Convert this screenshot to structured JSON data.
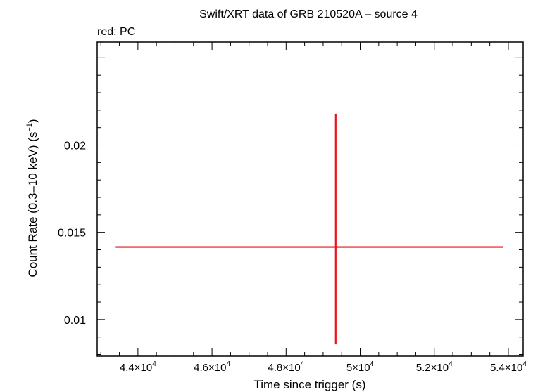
{
  "chart_data": {
    "type": "scatter",
    "title": "Swift/XRT data of GRB 210520A – source 4",
    "subtitle": "red: PC",
    "xlabel": "Time since trigger (s)",
    "ylabel": "Count Rate (0.3–10 keV) (s",
    "ylabel_sup": "−1",
    "ylabel_tail": ")",
    "xlim": [
      42900,
      54400
    ],
    "ylim": [
      0.0079,
      0.0259
    ],
    "x_ticks": [
      {
        "value": 44000,
        "mantissa": "4.4×10",
        "exp": "4"
      },
      {
        "value": 46000,
        "mantissa": "4.6×10",
        "exp": "4"
      },
      {
        "value": 48000,
        "mantissa": "4.8×10",
        "exp": "4"
      },
      {
        "value": 50000,
        "mantissa": "5×10",
        "exp": "4"
      },
      {
        "value": 52000,
        "mantissa": "5.2×10",
        "exp": "4"
      },
      {
        "value": 54000,
        "mantissa": "5.4×10",
        "exp": "4"
      }
    ],
    "y_ticks": [
      {
        "value": 0.01,
        "label": "0.01"
      },
      {
        "value": 0.015,
        "label": "0.015"
      },
      {
        "value": 0.02,
        "label": "0.02"
      }
    ],
    "series": [
      {
        "color": "#e8141a",
        "points": [
          {
            "x": 49340,
            "x_low": 43400,
            "x_high": 53850,
            "y": 0.01416,
            "y_low": 0.00858,
            "y_high": 0.0218
          }
        ]
      }
    ]
  }
}
